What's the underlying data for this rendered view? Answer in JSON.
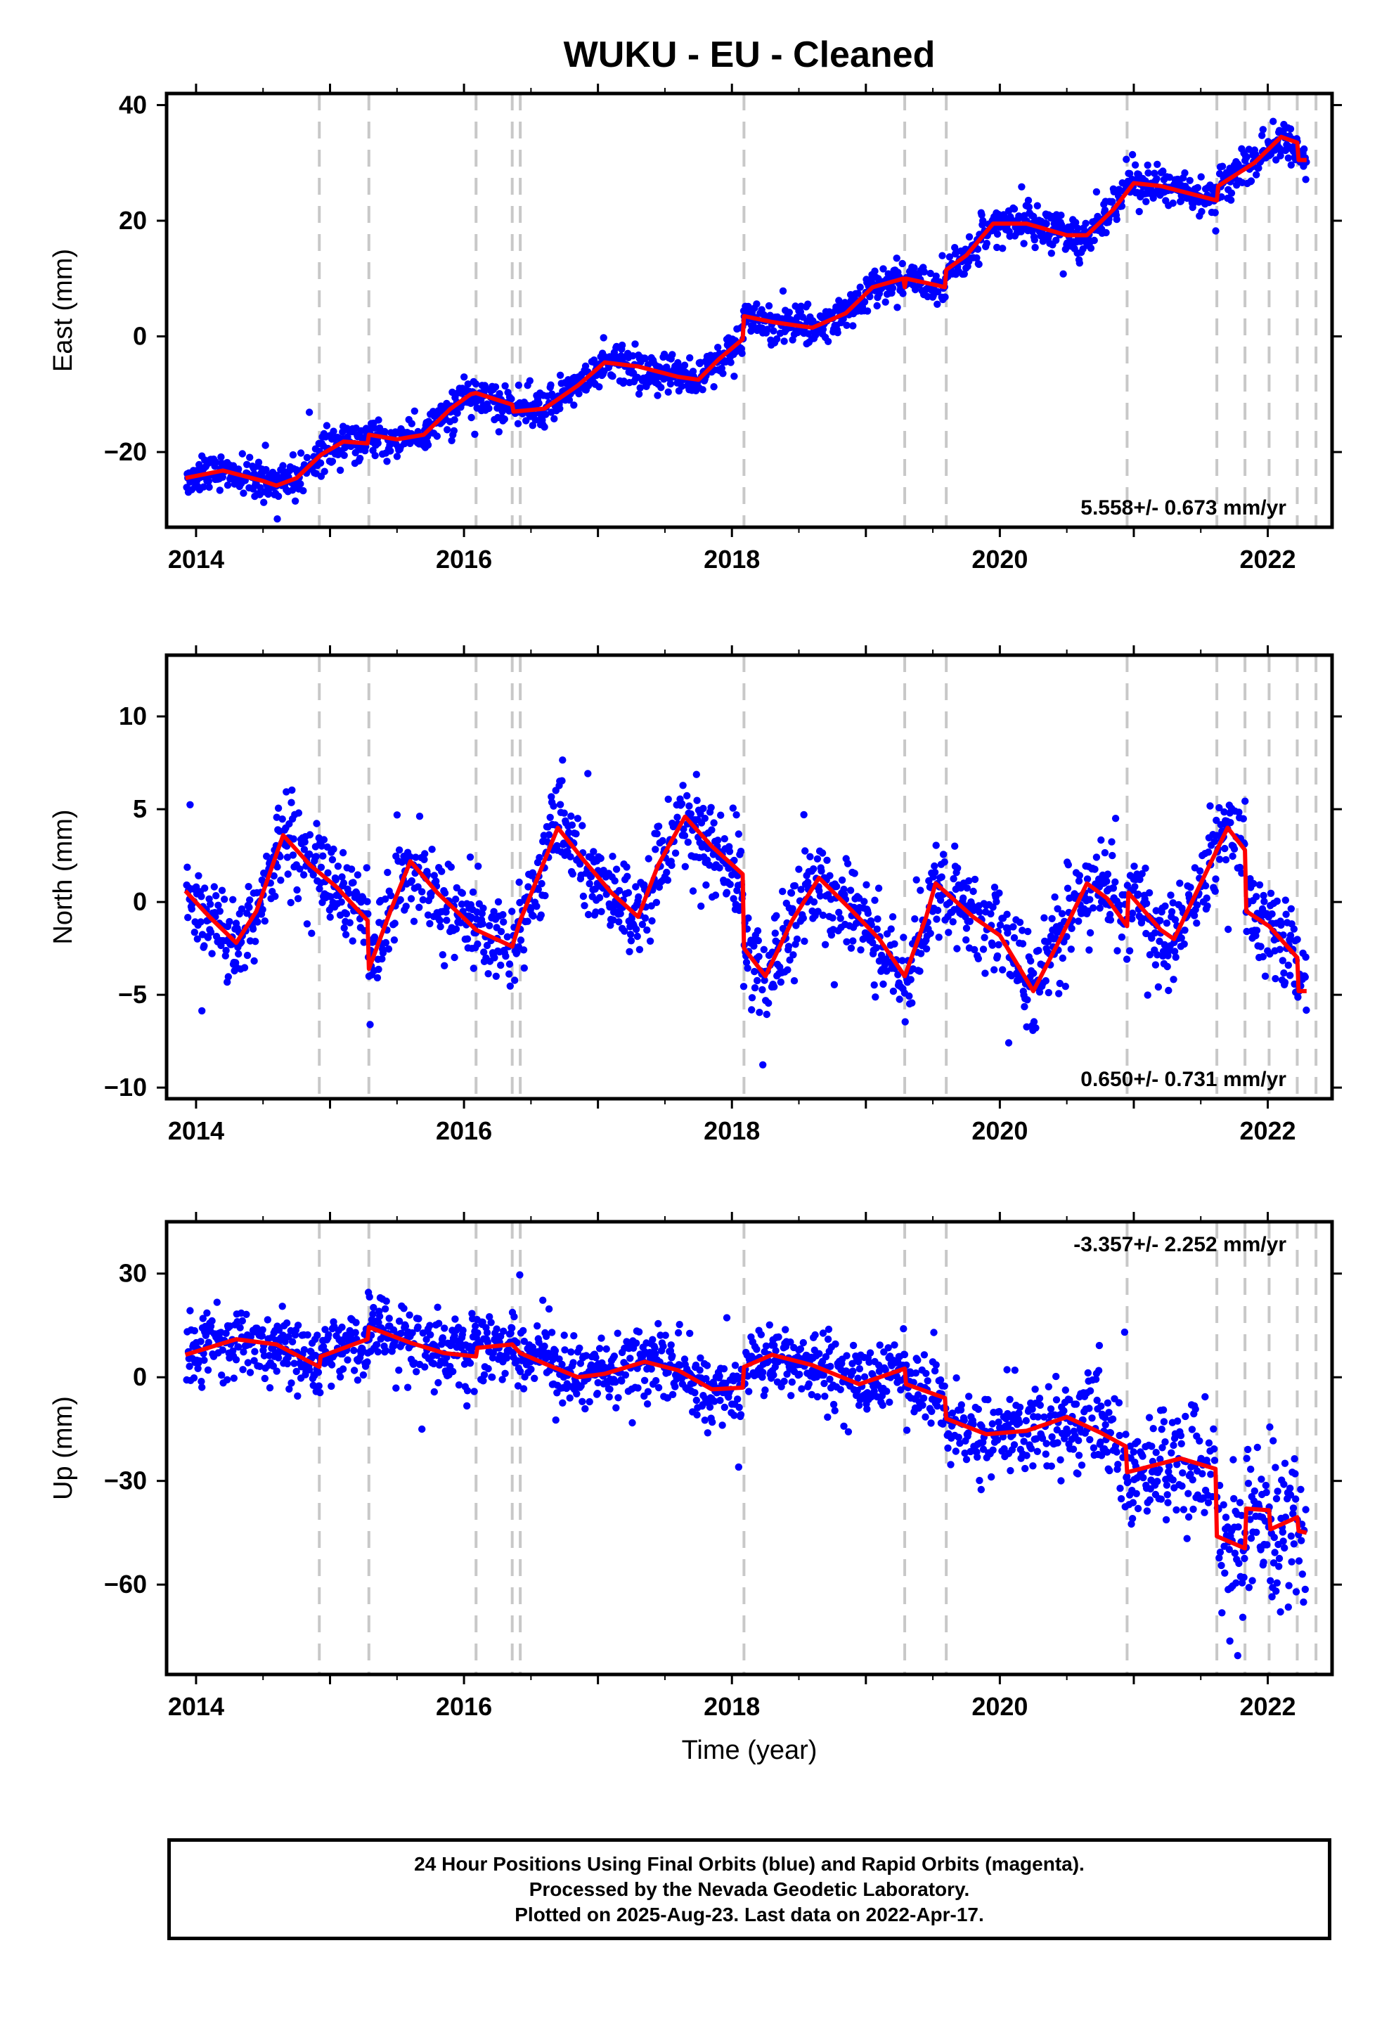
{
  "title": "WUKU  - EU - Cleaned",
  "xlabel": "Time (year)",
  "x_tick_labels": [
    "2014",
    "2016",
    "2018",
    "2020",
    "2022"
  ],
  "colors": {
    "points": "#0000ff",
    "model": "#ff0000",
    "breaks": "#c8c8c8",
    "frame": "#000000"
  },
  "caption": {
    "line1": "24 Hour Positions Using Final Orbits (blue) and Rapid Orbits (magenta).",
    "line2": "Processed by the Nevada Geodetic Laboratory.",
    "line3": "Plotted on 2025-Aug-23. Last data on 2022-Apr-17."
  },
  "chart_data": [
    {
      "type": "scatter",
      "panel": "east",
      "ylabel": "East (mm)",
      "xlim": [
        2013.78,
        2022.48
      ],
      "ylim": [
        -33,
        42
      ],
      "x_ticks": [
        2014,
        2016,
        2018,
        2020,
        2022
      ],
      "y_ticks": [
        -20,
        0,
        20,
        40
      ],
      "y_tick_labels": [
        "−20",
        "0",
        "20",
        "40"
      ],
      "rate_label": "5.558+/- 0.673 mm/yr",
      "rate_position": "bottom-right",
      "grid": false,
      "equipment_changes": [
        2014.92,
        2015.29,
        2016.09,
        2016.36,
        2016.42,
        2018.09,
        2019.29,
        2019.6,
        2020.95,
        2021.62,
        2021.83,
        2022.01,
        2022.22,
        2022.36
      ],
      "model_line": [
        [
          2013.92,
          -24.5
        ],
        [
          2014.2,
          -23.2
        ],
        [
          2014.5,
          -25.0
        ],
        [
          2014.6,
          -25.8
        ],
        [
          2014.75,
          -24.5
        ],
        [
          2014.93,
          -20.5
        ],
        [
          2015.1,
          -18.2
        ],
        [
          2015.28,
          -18.5
        ],
        [
          2015.29,
          -17.0
        ],
        [
          2015.5,
          -17.8
        ],
        [
          2015.7,
          -17.0
        ],
        [
          2015.9,
          -12.5
        ],
        [
          2016.05,
          -10.0
        ],
        [
          2016.09,
          -9.8
        ],
        [
          2016.36,
          -11.8
        ],
        [
          2016.37,
          -13.0
        ],
        [
          2016.6,
          -12.5
        ],
        [
          2016.85,
          -8.5
        ],
        [
          2017.05,
          -4.5
        ],
        [
          2017.3,
          -5.2
        ],
        [
          2017.6,
          -7.0
        ],
        [
          2017.75,
          -7.5
        ],
        [
          2017.9,
          -4.0
        ],
        [
          2018.08,
          -0.5
        ],
        [
          2018.09,
          3.5
        ],
        [
          2018.3,
          2.5
        ],
        [
          2018.6,
          1.5
        ],
        [
          2018.85,
          4.0
        ],
        [
          2019.05,
          8.5
        ],
        [
          2019.28,
          10.0
        ],
        [
          2019.29,
          8.5
        ],
        [
          2019.3,
          10.0
        ],
        [
          2019.5,
          9.0
        ],
        [
          2019.59,
          8.5
        ],
        [
          2019.6,
          11.5
        ],
        [
          2019.75,
          14.0
        ],
        [
          2019.95,
          19.5
        ],
        [
          2020.2,
          19.5
        ],
        [
          2020.5,
          17.5
        ],
        [
          2020.65,
          17.5
        ],
        [
          2020.85,
          22.0
        ],
        [
          2021.0,
          26.5
        ],
        [
          2021.2,
          26.0
        ],
        [
          2021.62,
          23.5
        ],
        [
          2021.63,
          26.0
        ],
        [
          2021.9,
          30.0
        ],
        [
          2022.1,
          34.5
        ],
        [
          2022.22,
          33.5
        ],
        [
          2022.23,
          30.5
        ],
        [
          2022.29,
          30.5
        ]
      ]
    },
    {
      "type": "scatter",
      "panel": "north",
      "ylabel": "North (mm)",
      "xlim": [
        2013.78,
        2022.48
      ],
      "ylim": [
        -10.6,
        13.3
      ],
      "x_ticks": [
        2014,
        2016,
        2018,
        2020,
        2022
      ],
      "y_ticks": [
        -10,
        -5,
        0,
        5,
        10
      ],
      "y_tick_labels": [
        "−10",
        "−5",
        "0",
        "5",
        "10"
      ],
      "rate_label": "0.650+/- 0.731 mm/yr",
      "rate_position": "bottom-right",
      "grid": false,
      "equipment_changes": [
        2014.92,
        2015.29,
        2016.09,
        2016.36,
        2016.42,
        2018.09,
        2019.29,
        2019.6,
        2020.95,
        2021.62,
        2021.83,
        2022.01,
        2022.22,
        2022.36
      ],
      "model_line": [
        [
          2013.92,
          0.6
        ],
        [
          2014.1,
          -0.8
        ],
        [
          2014.3,
          -2.2
        ],
        [
          2014.45,
          -0.5
        ],
        [
          2014.65,
          3.6
        ],
        [
          2014.85,
          2.0
        ],
        [
          2015.05,
          0.8
        ],
        [
          2015.28,
          -1.0
        ],
        [
          2015.29,
          -3.6
        ],
        [
          2015.45,
          -0.5
        ],
        [
          2015.6,
          2.2
        ],
        [
          2015.8,
          0.5
        ],
        [
          2016.09,
          -1.5
        ],
        [
          2016.36,
          -2.4
        ],
        [
          2016.42,
          -1.0
        ],
        [
          2016.7,
          4.0
        ],
        [
          2016.9,
          2.2
        ],
        [
          2017.1,
          0.5
        ],
        [
          2017.3,
          -0.8
        ],
        [
          2017.45,
          2.0
        ],
        [
          2017.65,
          4.6
        ],
        [
          2017.85,
          3.0
        ],
        [
          2018.08,
          1.5
        ],
        [
          2018.09,
          -2.5
        ],
        [
          2018.25,
          -4.0
        ],
        [
          2018.45,
          -1.0
        ],
        [
          2018.65,
          1.3
        ],
        [
          2018.9,
          -0.5
        ],
        [
          2019.1,
          -2.0
        ],
        [
          2019.29,
          -4.0
        ],
        [
          2019.45,
          -0.8
        ],
        [
          2019.52,
          1.0
        ],
        [
          2019.6,
          0.5
        ],
        [
          2019.8,
          -0.8
        ],
        [
          2020.0,
          -1.8
        ],
        [
          2020.25,
          -4.8
        ],
        [
          2020.45,
          -2.0
        ],
        [
          2020.65,
          1.0
        ],
        [
          2020.8,
          0.2
        ],
        [
          2020.95,
          -1.3
        ],
        [
          2020.96,
          0.5
        ],
        [
          2021.2,
          -1.5
        ],
        [
          2021.3,
          -2.0
        ],
        [
          2021.5,
          1.0
        ],
        [
          2021.7,
          4.0
        ],
        [
          2021.83,
          2.8
        ],
        [
          2021.84,
          -0.5
        ],
        [
          2022.01,
          -1.3
        ],
        [
          2022.22,
          -3.0
        ],
        [
          2022.23,
          -4.8
        ],
        [
          2022.29,
          -4.8
        ]
      ]
    },
    {
      "type": "scatter",
      "panel": "up",
      "ylabel": "Up (mm)",
      "xlim": [
        2013.78,
        2022.48
      ],
      "ylim": [
        -86,
        45
      ],
      "x_ticks": [
        2014,
        2016,
        2018,
        2020,
        2022
      ],
      "y_ticks": [
        -60,
        -30,
        0,
        30
      ],
      "y_tick_labels": [
        "−60",
        "−30",
        "0",
        "30"
      ],
      "rate_label": "-3.357+/- 2.252 mm/yr",
      "rate_position": "top-right",
      "grid": false,
      "equipment_changes": [
        2014.92,
        2015.29,
        2016.09,
        2016.36,
        2016.42,
        2018.09,
        2019.29,
        2019.6,
        2020.95,
        2021.62,
        2021.83,
        2022.01,
        2022.22,
        2022.36
      ],
      "model_line": [
        [
          2013.92,
          6.5
        ],
        [
          2014.3,
          11.0
        ],
        [
          2014.6,
          9.5
        ],
        [
          2014.92,
          3.0
        ],
        [
          2014.93,
          6.0
        ],
        [
          2015.28,
          11.0
        ],
        [
          2015.29,
          14.5
        ],
        [
          2015.6,
          10.0
        ],
        [
          2015.85,
          7.0
        ],
        [
          2016.09,
          6.0
        ],
        [
          2016.1,
          8.5
        ],
        [
          2016.36,
          9.5
        ],
        [
          2016.42,
          7.0
        ],
        [
          2016.6,
          4.0
        ],
        [
          2016.85,
          0.0
        ],
        [
          2017.05,
          1.0
        ],
        [
          2017.35,
          4.5
        ],
        [
          2017.6,
          2.0
        ],
        [
          2017.85,
          -3.5
        ],
        [
          2018.08,
          -3.0
        ],
        [
          2018.09,
          3.0
        ],
        [
          2018.3,
          6.5
        ],
        [
          2018.6,
          3.5
        ],
        [
          2018.95,
          -2.0
        ],
        [
          2019.29,
          2.5
        ],
        [
          2019.3,
          -2.0
        ],
        [
          2019.59,
          -6.0
        ],
        [
          2019.6,
          -12.0
        ],
        [
          2019.9,
          -16.5
        ],
        [
          2020.2,
          -15.5
        ],
        [
          2020.5,
          -11.5
        ],
        [
          2020.75,
          -16.0
        ],
        [
          2020.94,
          -20.0
        ],
        [
          2020.95,
          -27.5
        ],
        [
          2021.1,
          -26.0
        ],
        [
          2021.35,
          -23.5
        ],
        [
          2021.61,
          -26.5
        ],
        [
          2021.62,
          -46.0
        ],
        [
          2021.83,
          -49.5
        ],
        [
          2021.84,
          -38.0
        ],
        [
          2022.01,
          -38.5
        ],
        [
          2022.02,
          -44.0
        ],
        [
          2022.22,
          -40.5
        ],
        [
          2022.23,
          -44.5
        ],
        [
          2022.29,
          -45.0
        ]
      ]
    }
  ]
}
